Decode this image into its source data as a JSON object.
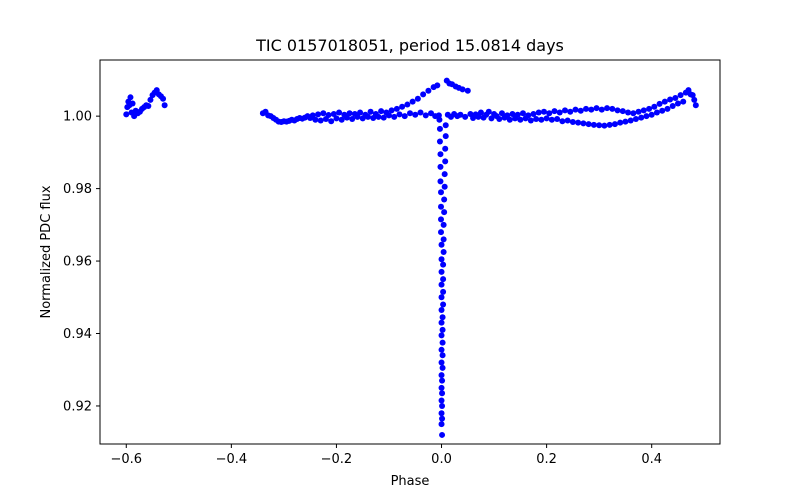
{
  "chart_data": {
    "type": "scatter",
    "title": "TIC 0157018051, period 15.0814 days",
    "xlabel": "Phase",
    "ylabel": "Normalized PDC flux",
    "xlim": [
      -0.65,
      0.53
    ],
    "ylim": [
      0.9095,
      1.0155
    ],
    "xticks": [
      -0.6,
      -0.4,
      -0.2,
      0.0,
      0.2,
      0.4
    ],
    "xtick_labels": [
      "−0.6",
      "−0.4",
      "−0.2",
      "0.0",
      "0.2",
      "0.4"
    ],
    "yticks": [
      0.92,
      0.94,
      0.96,
      0.98,
      1.0
    ],
    "ytick_labels": [
      "0.92",
      "0.94",
      "0.96",
      "0.98",
      "1.00"
    ],
    "grid": false,
    "marker_color": "#0000ff",
    "series": [
      {
        "name": "flux",
        "points": [
          [
            -0.6,
            1.0005
          ],
          [
            -0.598,
            1.0025
          ],
          [
            -0.596,
            1.004
          ],
          [
            -0.594,
            1.003
          ],
          [
            -0.592,
            1.0052
          ],
          [
            -0.59,
            1.001
          ],
          [
            -0.588,
            1.0035
          ],
          [
            -0.585,
            1.0
          ],
          [
            -0.582,
            1.0015
          ],
          [
            -0.578,
            1.0008
          ],
          [
            -0.574,
            1.0012
          ],
          [
            -0.57,
            1.002
          ],
          [
            -0.566,
            1.0025
          ],
          [
            -0.562,
            1.003
          ],
          [
            -0.558,
            1.0028
          ],
          [
            -0.554,
            1.0045
          ],
          [
            -0.55,
            1.0058
          ],
          [
            -0.546,
            1.0065
          ],
          [
            -0.542,
            1.0072
          ],
          [
            -0.538,
            1.006
          ],
          [
            -0.534,
            1.0055
          ],
          [
            -0.53,
            1.0048
          ],
          [
            -0.527,
            1.003
          ],
          [
            -0.34,
            1.0008
          ],
          [
            -0.335,
            1.0012
          ],
          [
            -0.33,
            1.0002
          ],
          [
            -0.325,
            1.0
          ],
          [
            -0.32,
            0.9995
          ],
          [
            -0.315,
            0.999
          ],
          [
            -0.31,
            0.9985
          ],
          [
            -0.305,
            0.9984
          ],
          [
            -0.3,
            0.9986
          ],
          [
            -0.295,
            0.9985
          ],
          [
            -0.29,
            0.9987
          ],
          [
            -0.285,
            0.999
          ],
          [
            -0.28,
            0.9988
          ],
          [
            -0.275,
            0.9992
          ],
          [
            -0.27,
            0.9995
          ],
          [
            -0.265,
            0.9993
          ],
          [
            -0.26,
            0.9996
          ],
          [
            -0.255,
            1.0
          ],
          [
            -0.25,
            0.9995
          ],
          [
            -0.245,
            1.0002
          ],
          [
            -0.24,
            0.999
          ],
          [
            -0.235,
            1.0005
          ],
          [
            -0.23,
            0.9988
          ],
          [
            -0.225,
            1.0008
          ],
          [
            -0.22,
            0.9992
          ],
          [
            -0.215,
            1.0003
          ],
          [
            -0.21,
            0.9986
          ],
          [
            -0.205,
            1.0006
          ],
          [
            -0.2,
            0.9994
          ],
          [
            -0.195,
            1.001
          ],
          [
            -0.19,
            0.999
          ],
          [
            -0.185,
            1.0004
          ],
          [
            -0.18,
            0.9996
          ],
          [
            -0.175,
            1.0008
          ],
          [
            -0.17,
            0.9992
          ],
          [
            -0.165,
            1.0006
          ],
          [
            -0.16,
            0.9998
          ],
          [
            -0.155,
            1.001
          ],
          [
            -0.15,
            0.9994
          ],
          [
            -0.145,
            1.0004
          ],
          [
            -0.14,
            0.9998
          ],
          [
            -0.135,
            1.0012
          ],
          [
            -0.13,
            0.9995
          ],
          [
            -0.125,
            1.0006
          ],
          [
            -0.12,
            0.9998
          ],
          [
            -0.115,
            1.0014
          ],
          [
            -0.11,
            0.9996
          ],
          [
            -0.105,
            1.001
          ],
          [
            -0.1,
            1.0002
          ],
          [
            -0.095,
            1.0016
          ],
          [
            -0.09,
            0.9998
          ],
          [
            -0.085,
            1.002
          ],
          [
            -0.08,
            1.0005
          ],
          [
            -0.075,
            1.0026
          ],
          [
            -0.07,
            1.0
          ],
          [
            -0.065,
            1.0032
          ],
          [
            -0.06,
            1.0008
          ],
          [
            -0.055,
            1.004
          ],
          [
            -0.05,
            1.0004
          ],
          [
            -0.045,
            1.0048
          ],
          [
            -0.04,
            1.001
          ],
          [
            -0.035,
            1.006
          ],
          [
            -0.03,
            1.0002
          ],
          [
            -0.025,
            1.007
          ],
          [
            -0.02,
            1.0008
          ],
          [
            -0.015,
            1.008
          ],
          [
            -0.012,
            1.0
          ],
          [
            -0.008,
            1.0085
          ],
          [
            -0.005,
            1.0002
          ],
          [
            -0.004,
            0.999
          ],
          [
            -0.003,
            0.9965
          ],
          [
            -0.003,
            0.993
          ],
          [
            -0.002,
            0.9895
          ],
          [
            -0.002,
            0.986
          ],
          [
            -0.002,
            0.982
          ],
          [
            -0.001,
            0.979
          ],
          [
            -0.001,
            0.975
          ],
          [
            -0.001,
            0.9715
          ],
          [
            -0.001,
            0.968
          ],
          [
            0.0,
            0.9645
          ],
          [
            0.0,
            0.9605
          ],
          [
            0.0,
            0.957
          ],
          [
            0.0,
            0.9535
          ],
          [
            0.0,
            0.95
          ],
          [
            0.0,
            0.9465
          ],
          [
            0.0,
            0.943
          ],
          [
            0.0,
            0.9395
          ],
          [
            0.0,
            0.9355
          ],
          [
            0.0,
            0.932
          ],
          [
            0.0,
            0.9285
          ],
          [
            0.0,
            0.925
          ],
          [
            0.0,
            0.9215
          ],
          [
            0.0,
            0.918
          ],
          [
            0.0,
            0.915
          ],
          [
            0.001,
            0.912
          ],
          [
            0.001,
            0.9165
          ],
          [
            0.001,
            0.92
          ],
          [
            0.001,
            0.9235
          ],
          [
            0.001,
            0.927
          ],
          [
            0.002,
            0.9305
          ],
          [
            0.002,
            0.934
          ],
          [
            0.002,
            0.9375
          ],
          [
            0.002,
            0.941
          ],
          [
            0.002,
            0.9445
          ],
          [
            0.003,
            0.948
          ],
          [
            0.003,
            0.9515
          ],
          [
            0.003,
            0.955
          ],
          [
            0.003,
            0.959
          ],
          [
            0.004,
            0.9625
          ],
          [
            0.004,
            0.966
          ],
          [
            0.004,
            0.97
          ],
          [
            0.005,
            0.9735
          ],
          [
            0.005,
            0.977
          ],
          [
            0.006,
            0.9805
          ],
          [
            0.006,
            0.984
          ],
          [
            0.007,
            0.9875
          ],
          [
            0.007,
            0.991
          ],
          [
            0.008,
            0.9945
          ],
          [
            0.008,
            0.9975
          ],
          [
            0.01,
            1.0098
          ],
          [
            0.012,
            1.0004
          ],
          [
            0.015,
            1.009
          ],
          [
            0.018,
            0.9998
          ],
          [
            0.02,
            1.0088
          ],
          [
            0.024,
            1.0006
          ],
          [
            0.027,
            1.0082
          ],
          [
            0.03,
            1.0
          ],
          [
            0.033,
            1.0078
          ],
          [
            0.036,
            1.0004
          ],
          [
            0.04,
            1.0074
          ],
          [
            0.045,
            0.9998
          ],
          [
            0.05,
            1.007
          ],
          [
            0.055,
            1.0006
          ],
          [
            0.06,
            0.9995
          ],
          [
            0.065,
            1.0005
          ],
          [
            0.07,
            0.9998
          ],
          [
            0.075,
            1.001
          ],
          [
            0.08,
            0.9996
          ],
          [
            0.085,
            1.0004
          ],
          [
            0.09,
            1.0012
          ],
          [
            0.095,
            0.9994
          ],
          [
            0.1,
            1.0006
          ],
          [
            0.105,
            1.0
          ],
          [
            0.11,
            0.9992
          ],
          [
            0.115,
            1.0008
          ],
          [
            0.12,
            0.9996
          ],
          [
            0.125,
            1.0002
          ],
          [
            0.13,
            0.999
          ],
          [
            0.135,
            1.0006
          ],
          [
            0.14,
            0.9994
          ],
          [
            0.145,
            1.0004
          ],
          [
            0.15,
            0.999
          ],
          [
            0.155,
            1.0008
          ],
          [
            0.16,
            0.9994
          ],
          [
            0.165,
            1.0002
          ],
          [
            0.17,
            0.9988
          ],
          [
            0.175,
            1.0006
          ],
          [
            0.18,
            0.9992
          ],
          [
            0.185,
            1.001
          ],
          [
            0.19,
            0.999
          ],
          [
            0.195,
            1.0012
          ],
          [
            0.2,
            0.9994
          ],
          [
            0.205,
            1.0008
          ],
          [
            0.21,
            0.999
          ],
          [
            0.215,
            1.0014
          ],
          [
            0.22,
            0.9992
          ],
          [
            0.225,
            1.001
          ],
          [
            0.23,
            0.9986
          ],
          [
            0.235,
            1.0016
          ],
          [
            0.24,
            0.9988
          ],
          [
            0.245,
            1.0012
          ],
          [
            0.25,
            0.9984
          ],
          [
            0.255,
            1.0018
          ],
          [
            0.26,
            0.9982
          ],
          [
            0.265,
            1.0015
          ],
          [
            0.27,
            0.998
          ],
          [
            0.275,
            1.002
          ],
          [
            0.28,
            0.9978
          ],
          [
            0.285,
            1.0018
          ],
          [
            0.29,
            0.9976
          ],
          [
            0.295,
            1.0022
          ],
          [
            0.3,
            0.9975
          ],
          [
            0.305,
            1.0018
          ],
          [
            0.31,
            0.9974
          ],
          [
            0.315,
            1.0022
          ],
          [
            0.32,
            0.9976
          ],
          [
            0.325,
            1.002
          ],
          [
            0.33,
            0.9978
          ],
          [
            0.335,
            1.0016
          ],
          [
            0.34,
            0.9982
          ],
          [
            0.345,
            1.0014
          ],
          [
            0.35,
            0.9985
          ],
          [
            0.355,
            1.001
          ],
          [
            0.36,
            0.9988
          ],
          [
            0.365,
            1.0008
          ],
          [
            0.37,
            0.9992
          ],
          [
            0.375,
            1.0012
          ],
          [
            0.38,
            0.9996
          ],
          [
            0.385,
            1.0016
          ],
          [
            0.39,
            1.0
          ],
          [
            0.395,
            1.002
          ],
          [
            0.4,
            1.0004
          ],
          [
            0.405,
            1.0026
          ],
          [
            0.41,
            1.001
          ],
          [
            0.415,
            1.0034
          ],
          [
            0.42,
            1.0015
          ],
          [
            0.425,
            1.004
          ],
          [
            0.43,
            1.002
          ],
          [
            0.435,
            1.0046
          ],
          [
            0.44,
            1.0028
          ],
          [
            0.445,
            1.005
          ],
          [
            0.45,
            1.0035
          ],
          [
            0.455,
            1.0058
          ],
          [
            0.46,
            1.004
          ],
          [
            0.465,
            1.0065
          ],
          [
            0.47,
            1.0072
          ],
          [
            0.474,
            1.006
          ],
          [
            0.478,
            1.0058
          ],
          [
            0.481,
            1.0045
          ],
          [
            0.484,
            1.003
          ]
        ]
      }
    ]
  }
}
